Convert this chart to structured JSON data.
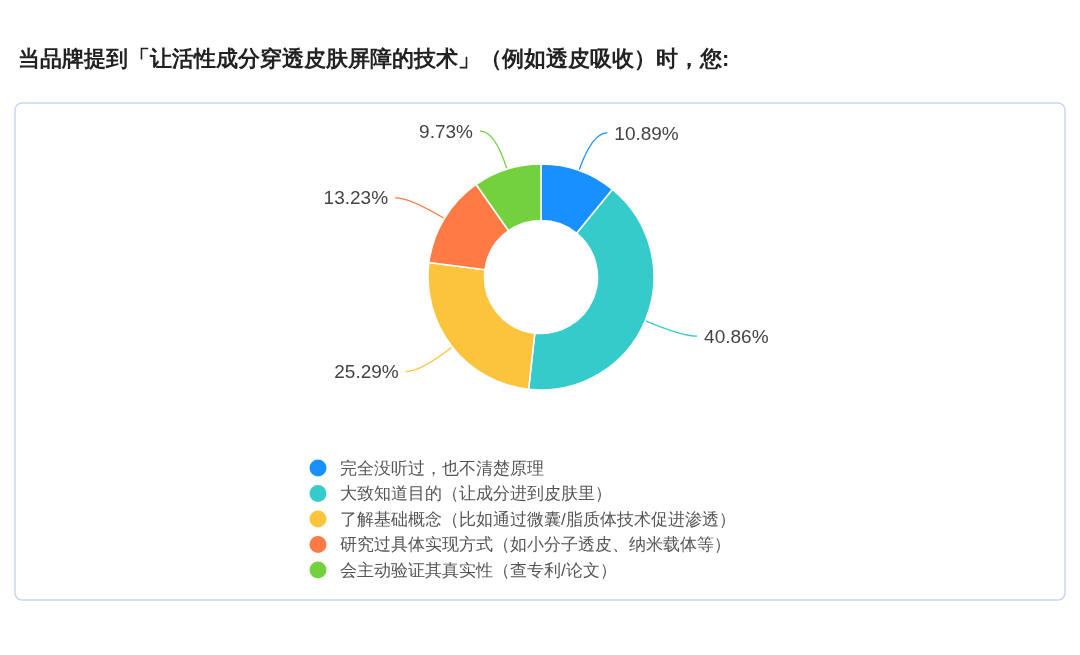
{
  "chart_data": {
    "type": "donut",
    "title": "当品牌提到「让活性成分穿透皮肤屏障的技术」（例如透皮吸收）时，您:",
    "categories": [
      "完全没听过，也不清楚原理",
      "大致知道目的（让成分进到皮肤里）",
      "了解基础概念（比如通过微囊/脂质体技术促进渗透）",
      "研究过具体实现方式（如小分子透皮、纳米载体等）",
      "会主动验证其真实性（查专利/论文）"
    ],
    "values": [
      10.89,
      40.86,
      25.29,
      13.23,
      9.73
    ],
    "colors": [
      "#1890ff",
      "#36cbcb",
      "#fbc43c",
      "#ff7a45",
      "#73d13d"
    ],
    "value_labels": [
      "10.89%",
      "40.86%",
      "25.29%",
      "13.23%",
      "9.73%"
    ],
    "legend": "bottom"
  }
}
